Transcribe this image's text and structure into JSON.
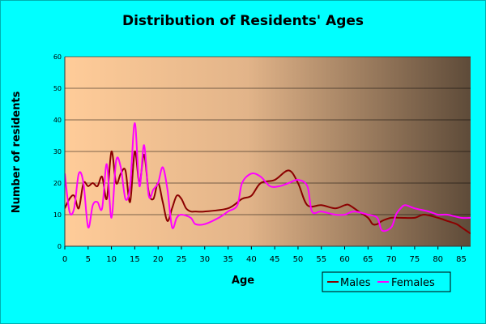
{
  "chart_data": {
    "type": "line",
    "title": "Distribution of Residents' Ages",
    "xlabel": "Age",
    "ylabel": "Number of residents",
    "xlim": [
      0,
      87
    ],
    "ylim": [
      0,
      60
    ],
    "xticks": [
      "0",
      "5",
      "10",
      "15",
      "20",
      "25",
      "30",
      "35",
      "40",
      "45",
      "50",
      "55",
      "60",
      "65",
      "70",
      "75",
      "80",
      "85"
    ],
    "yticks": [
      "0",
      "10",
      "20",
      "30",
      "40",
      "50",
      "60"
    ],
    "grid": "horizontal",
    "legend": "bottom-right",
    "series": [
      {
        "name": "Males",
        "color": "#8b0000",
        "points": [
          [
            0,
            12
          ],
          [
            1,
            15
          ],
          [
            2,
            16
          ],
          [
            3,
            12
          ],
          [
            4,
            20
          ],
          [
            5,
            19
          ],
          [
            6,
            20
          ],
          [
            7,
            19
          ],
          [
            8,
            22
          ],
          [
            9,
            15
          ],
          [
            10,
            30
          ],
          [
            11,
            20
          ],
          [
            12,
            23
          ],
          [
            13,
            24
          ],
          [
            14,
            14
          ],
          [
            15,
            30
          ],
          [
            16,
            20
          ],
          [
            17,
            29
          ],
          [
            18,
            17
          ],
          [
            19,
            15
          ],
          [
            20,
            20
          ],
          [
            21,
            14
          ],
          [
            22,
            8
          ],
          [
            23,
            12
          ],
          [
            24,
            16
          ],
          [
            25,
            15
          ],
          [
            26,
            12
          ],
          [
            27,
            11
          ],
          [
            28,
            11
          ],
          [
            30,
            11
          ],
          [
            35,
            12
          ],
          [
            38,
            15
          ],
          [
            40,
            16
          ],
          [
            42,
            20
          ],
          [
            45,
            21
          ],
          [
            48,
            24
          ],
          [
            50,
            20
          ],
          [
            52,
            13
          ],
          [
            55,
            13
          ],
          [
            58,
            12
          ],
          [
            60,
            13
          ],
          [
            61,
            13
          ],
          [
            63,
            11
          ],
          [
            65,
            9
          ],
          [
            66,
            7
          ],
          [
            67,
            7
          ],
          [
            68,
            8
          ],
          [
            70,
            9
          ],
          [
            72,
            9
          ],
          [
            75,
            9
          ],
          [
            77,
            10
          ],
          [
            80,
            9
          ],
          [
            82,
            8
          ],
          [
            84,
            7
          ],
          [
            85,
            6
          ],
          [
            86,
            5
          ],
          [
            87,
            4
          ]
        ]
      },
      {
        "name": "Females",
        "color": "#ff00ff",
        "points": [
          [
            0,
            23
          ],
          [
            1,
            11
          ],
          [
            2,
            12
          ],
          [
            3,
            23
          ],
          [
            4,
            20
          ],
          [
            5,
            6
          ],
          [
            6,
            13
          ],
          [
            7,
            14
          ],
          [
            8,
            12
          ],
          [
            9,
            26
          ],
          [
            10,
            9
          ],
          [
            11,
            27
          ],
          [
            12,
            25
          ],
          [
            13,
            15
          ],
          [
            14,
            19
          ],
          [
            15,
            39
          ],
          [
            16,
            19
          ],
          [
            17,
            32
          ],
          [
            18,
            16
          ],
          [
            19,
            18
          ],
          [
            20,
            20
          ],
          [
            21,
            25
          ],
          [
            22,
            18
          ],
          [
            23,
            6
          ],
          [
            24,
            9
          ],
          [
            25,
            10
          ],
          [
            27,
            9
          ],
          [
            28,
            7
          ],
          [
            30,
            7
          ],
          [
            33,
            9
          ],
          [
            35,
            11
          ],
          [
            37,
            13
          ],
          [
            38,
            20
          ],
          [
            40,
            23
          ],
          [
            42,
            22
          ],
          [
            44,
            19
          ],
          [
            46,
            19
          ],
          [
            48,
            20
          ],
          [
            50,
            21
          ],
          [
            52,
            19
          ],
          [
            53,
            11
          ],
          [
            55,
            11
          ],
          [
            58,
            10
          ],
          [
            60,
            10
          ],
          [
            62,
            11
          ],
          [
            65,
            10
          ],
          [
            67,
            9
          ],
          [
            68,
            5
          ],
          [
            70,
            6
          ],
          [
            71,
            10
          ],
          [
            72,
            12
          ],
          [
            73,
            13
          ],
          [
            75,
            12
          ],
          [
            78,
            11
          ],
          [
            80,
            10
          ],
          [
            82,
            10
          ],
          [
            85,
            9
          ],
          [
            87,
            9
          ]
        ]
      }
    ]
  }
}
